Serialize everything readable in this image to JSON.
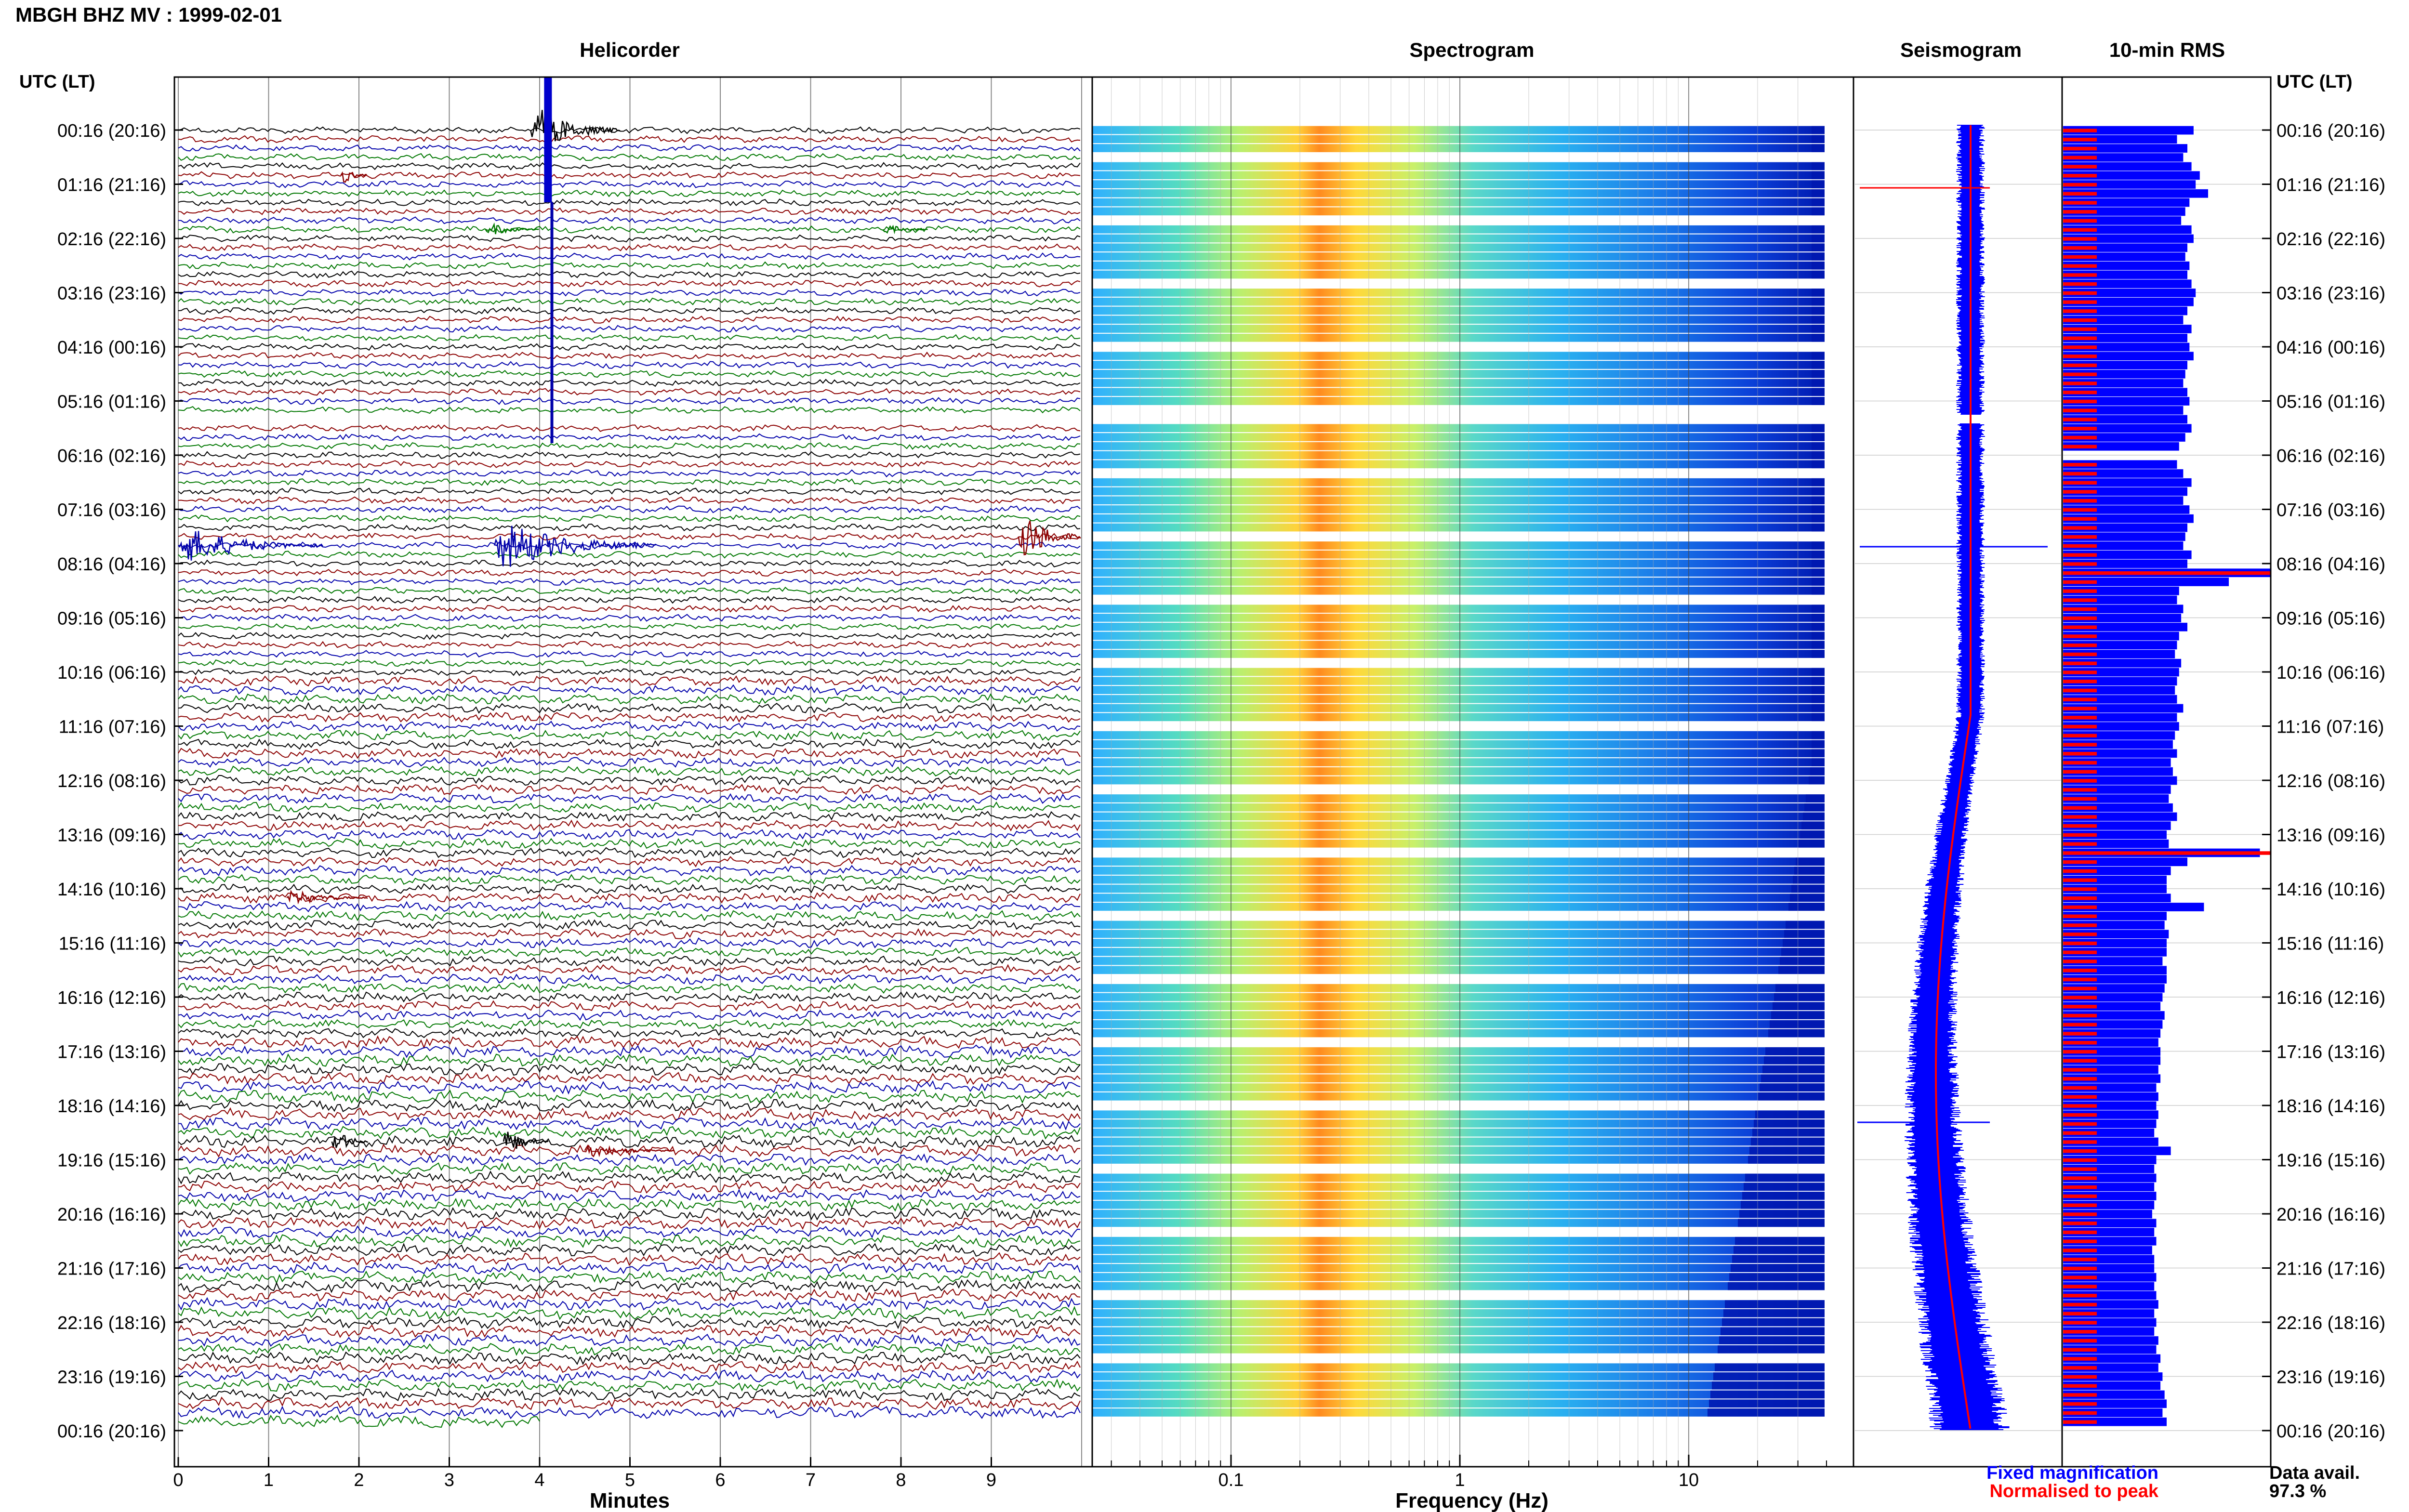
{
  "station_title": "MBGH BHZ MV : 1999-02-01",
  "panels": {
    "helicorder": "Helicorder",
    "spectrogram": "Spectrogram",
    "seismogram": "Seismogram",
    "rms": "10-min RMS"
  },
  "time_axis_label": "UTC (LT)",
  "time_ticks": [
    "00:16 (20:16)",
    "01:16 (21:16)",
    "02:16 (22:16)",
    "03:16 (23:16)",
    "04:16 (00:16)",
    "05:16 (01:16)",
    "06:16 (02:16)",
    "07:16 (03:16)",
    "08:16 (04:16)",
    "09:16 (05:16)",
    "10:16 (06:16)",
    "11:16 (07:16)",
    "12:16 (08:16)",
    "13:16 (09:16)",
    "14:16 (10:16)",
    "15:16 (11:16)",
    "16:16 (12:16)",
    "17:16 (13:16)",
    "18:16 (14:16)",
    "19:16 (15:16)",
    "20:16 (16:16)",
    "21:16 (17:16)",
    "22:16 (18:16)",
    "23:16 (19:16)",
    "00:16 (20:16)"
  ],
  "minutes_axis": {
    "label": "Minutes",
    "ticks": [
      "0",
      "1",
      "2",
      "3",
      "4",
      "5",
      "6",
      "7",
      "8",
      "9"
    ]
  },
  "frequency_axis": {
    "label": "Frequency (Hz)",
    "ticks": [
      "0.1",
      "1",
      "10"
    ],
    "scale": "log"
  },
  "legend": {
    "fixed": "Fixed magnification",
    "normalised": "Normalised to peak",
    "fixed_color": "#0000ff",
    "normalised_color": "#ff0000"
  },
  "availability": {
    "label": "Data avail.",
    "value": "97.3 %"
  },
  "colors": {
    "trace_cycle": [
      "#000000",
      "#8b0000",
      "#0000aa",
      "#007700"
    ],
    "rms_fixed": "#0000ff",
    "rms_norm": "#ff0000"
  },
  "chart_data": [
    {
      "type": "line",
      "title": "Helicorder",
      "xlabel": "Minutes",
      "xlim": [
        0,
        10
      ],
      "rows": 144,
      "row_minutes": 10,
      "gap_hours_utc": [
        "05:26-05:36"
      ],
      "events": [
        {
          "time_utc": "00:04",
          "amplitude": "large"
        },
        {
          "time_utc": "07:48",
          "amplitude": "large"
        },
        {
          "time_utc": "07:58",
          "amplitude": "medium"
        },
        {
          "time_utc": "18:23",
          "amplitude": "small"
        }
      ]
    },
    {
      "type": "heatmap",
      "title": "Spectrogram",
      "xlabel": "Frequency (Hz)",
      "xscale": "log",
      "xlim": [
        0.03,
        40
      ],
      "dominant_band_hz": [
        0.2,
        0.35
      ]
    },
    {
      "type": "line",
      "title": "Seismogram",
      "legend": [
        "Fixed magnification",
        "Normalised to peak"
      ]
    },
    {
      "type": "bar",
      "title": "10-min RMS",
      "series": [
        {
          "name": "Fixed magnification",
          "relative_values": [
            0.63,
            0.55,
            0.6,
            0.58,
            0.62,
            0.66,
            0.64,
            0.7,
            0.61,
            0.59,
            0.57,
            0.62,
            0.63,
            0.6,
            0.59,
            0.61,
            0.6,
            0.62,
            0.64,
            0.63,
            0.6,
            0.58,
            0.62,
            0.6,
            0.61,
            0.63,
            0.6,
            0.59,
            0.58,
            0.6,
            0.61,
            0.58,
            0.6,
            0.62,
            0.59,
            0.56,
            0.0,
            0.55,
            0.58,
            0.62,
            0.6,
            0.58,
            0.61,
            0.63,
            0.6,
            0.59,
            0.58,
            0.62,
            0.6,
            1.0,
            0.8,
            0.56,
            0.55,
            0.58,
            0.57,
            0.6,
            0.56,
            0.55,
            0.54,
            0.57,
            0.56,
            0.55,
            0.54,
            0.55,
            0.58,
            0.55,
            0.56,
            0.54,
            0.53,
            0.55,
            0.52,
            0.53,
            0.55,
            0.52,
            0.51,
            0.53,
            0.55,
            0.52,
            0.5,
            0.51,
            0.95,
            0.6,
            0.52,
            0.5,
            0.5,
            0.52,
            0.68,
            0.5,
            0.49,
            0.51,
            0.5,
            0.5,
            0.48,
            0.5,
            0.5,
            0.49,
            0.48,
            0.47,
            0.49,
            0.48,
            0.47,
            0.46,
            0.47,
            0.47,
            0.46,
            0.47,
            0.45,
            0.46,
            0.45,
            0.46,
            0.45,
            0.44,
            0.46,
            0.52,
            0.45,
            0.44,
            0.45,
            0.44,
            0.45,
            0.44,
            0.43,
            0.45,
            0.44,
            0.45,
            0.43,
            0.44,
            0.44,
            0.45,
            0.44,
            0.45,
            0.46,
            0.44,
            0.45,
            0.44,
            0.46,
            0.45,
            0.47,
            0.46,
            0.48,
            0.47,
            0.49,
            0.5,
            0.48,
            0.5
          ]
        },
        {
          "name": "Normalised to peak"
        }
      ]
    }
  ]
}
